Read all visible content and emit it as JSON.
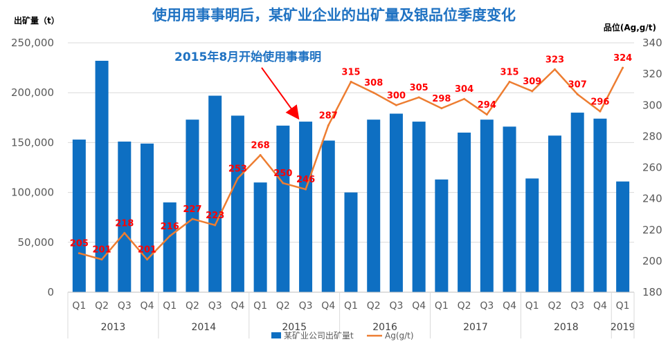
{
  "chart_data": {
    "type": "bar",
    "title": "使用用事事明后，某矿业企业的出矿量及银品位季度变化",
    "ylabel": "出矿量（t）",
    "y2label": "品位(Ag,g/t)",
    "ylim": [
      0,
      250000
    ],
    "y2lim": [
      180,
      340
    ],
    "yticks": [
      "0",
      "50,000",
      "100,000",
      "150,000",
      "200,000",
      "250,000"
    ],
    "y2ticks": [
      "180",
      "200",
      "220",
      "240",
      "260",
      "280",
      "300",
      "320",
      "340"
    ],
    "categories": [
      "Q1",
      "Q2",
      "Q3",
      "Q4",
      "Q1",
      "Q2",
      "Q3",
      "Q4",
      "Q1",
      "Q2",
      "Q3",
      "Q4",
      "Q1",
      "Q2",
      "Q3",
      "Q4",
      "Q1",
      "Q2",
      "Q3",
      "Q4",
      "Q1",
      "Q2",
      "Q3",
      "Q4",
      "Q1"
    ],
    "years": [
      {
        "label": "2013",
        "count": 4
      },
      {
        "label": "2014",
        "count": 4
      },
      {
        "label": "2015",
        "count": 4
      },
      {
        "label": "2016",
        "count": 4
      },
      {
        "label": "2017",
        "count": 4
      },
      {
        "label": "2018",
        "count": 4
      },
      {
        "label": "2019",
        "count": 1
      }
    ],
    "series": [
      {
        "name": "某矿业公司出矿量t",
        "type": "bar",
        "axis": "left",
        "color": "#0e6fc2",
        "values": [
          153000,
          232000,
          151000,
          149000,
          90000,
          173000,
          197000,
          177000,
          110000,
          167000,
          171000,
          152000,
          100000,
          173000,
          179000,
          171000,
          113000,
          160000,
          173000,
          166000,
          114000,
          157000,
          180000,
          174000,
          111000
        ]
      },
      {
        "name": "Ag(g/t)",
        "type": "line",
        "axis": "right",
        "color": "#ed7d31",
        "values": [
          205,
          201,
          218,
          201,
          216,
          227,
          223,
          253,
          268,
          250,
          246,
          287,
          315,
          308,
          300,
          305,
          298,
          304,
          294,
          315,
          309,
          323,
          307,
          296,
          324
        ]
      }
    ],
    "annotation": {
      "text": "2015年8月开始使用事事明",
      "target_index": 10
    },
    "legend_position": "bottom"
  }
}
